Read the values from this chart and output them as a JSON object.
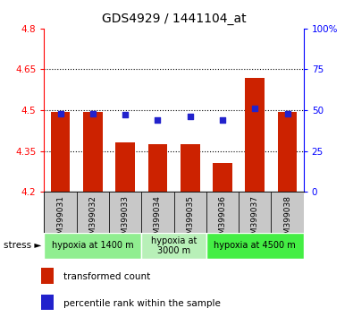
{
  "title": "GDS4929 / 1441104_at",
  "samples": [
    "GSM399031",
    "GSM399032",
    "GSM399033",
    "GSM399034",
    "GSM399035",
    "GSM399036",
    "GSM399037",
    "GSM399038"
  ],
  "bar_values": [
    4.495,
    4.493,
    4.38,
    4.375,
    4.375,
    4.305,
    4.62,
    4.493
  ],
  "percentile_values": [
    48,
    48,
    47,
    44,
    46,
    44,
    51,
    48
  ],
  "ylim_left": [
    4.2,
    4.8
  ],
  "ylim_right": [
    0,
    100
  ],
  "yticks_left": [
    4.2,
    4.35,
    4.5,
    4.65,
    4.8
  ],
  "yticks_right": [
    0,
    25,
    50,
    75,
    100
  ],
  "ytick_labels_left": [
    "4.2",
    "4.35",
    "4.5",
    "4.65",
    "4.8"
  ],
  "ytick_labels_right": [
    "0",
    "25",
    "50",
    "75",
    "100%"
  ],
  "hlines": [
    4.35,
    4.5,
    4.65
  ],
  "bar_color": "#cc2200",
  "dot_color": "#2222cc",
  "bar_width": 0.6,
  "groups": [
    {
      "label": "hypoxia at 1400 m",
      "indices": [
        0,
        1,
        2
      ],
      "color": "#90ee90"
    },
    {
      "label": "hypoxia at\n3000 m",
      "indices": [
        3,
        4
      ],
      "color": "#b8f0b8"
    },
    {
      "label": "hypoxia at 4500 m",
      "indices": [
        5,
        6,
        7
      ],
      "color": "#44ee44"
    }
  ],
  "legend_items": [
    {
      "color": "#cc2200",
      "label": "transformed count"
    },
    {
      "color": "#2222cc",
      "label": "percentile rank within the sample"
    }
  ],
  "background_color": "#ffffff",
  "sample_label_bg": "#c8c8c8",
  "stress_arrow": "stress ►"
}
